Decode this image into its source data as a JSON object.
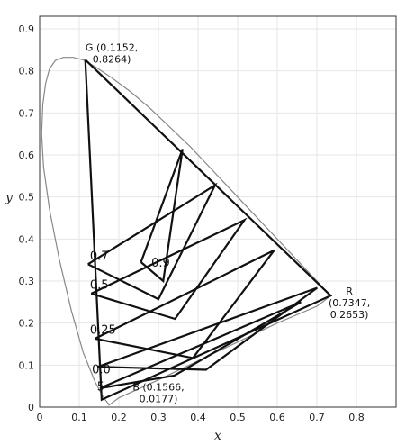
{
  "chart_data": {
    "type": "line",
    "title": "",
    "xlabel": "x",
    "ylabel": "y",
    "xlim": [
      0,
      0.9
    ],
    "ylim": [
      0,
      0.93
    ],
    "grid": true,
    "x_ticks": [
      "0",
      "0.1",
      "0.2",
      "0.3",
      "0.4",
      "0.5",
      "0.6",
      "0.7",
      "0.8"
    ],
    "y_ticks": [
      "0",
      "0.1",
      "0.2",
      "0.3",
      "0.4",
      "0.5",
      "0.6",
      "0.7",
      "0.8",
      "0.9"
    ],
    "vertices": [
      {
        "key": "G",
        "label_lines": [
          "G (0.1152,",
          "0.8264)"
        ],
        "x": 0.1152,
        "y": 0.8264
      },
      {
        "key": "R",
        "label_lines": [
          "R",
          "(0.7347,",
          "0.2653)"
        ],
        "x": 0.7347,
        "y": 0.2653
      },
      {
        "key": "B",
        "label_lines": [
          "B (0.1566,",
          "0.0177)"
        ],
        "x": 0.1566,
        "y": 0.0177
      }
    ],
    "spectral_locus": {
      "x": [
        0.175,
        0.174,
        0.17,
        0.16,
        0.14,
        0.11,
        0.08,
        0.05,
        0.025,
        0.01,
        0.005,
        0.008,
        0.015,
        0.025,
        0.04,
        0.06,
        0.085,
        0.11,
        0.14,
        0.18,
        0.23,
        0.28,
        0.33,
        0.38,
        0.43,
        0.48,
        0.53,
        0.58,
        0.63,
        0.68,
        0.735,
        0.7,
        0.6,
        0.5,
        0.4,
        0.3,
        0.2,
        0.175
      ],
      "y": [
        0.005,
        0.008,
        0.012,
        0.025,
        0.06,
        0.13,
        0.23,
        0.35,
        0.47,
        0.57,
        0.65,
        0.72,
        0.77,
        0.805,
        0.825,
        0.832,
        0.832,
        0.826,
        0.81,
        0.785,
        0.75,
        0.71,
        0.665,
        0.62,
        0.57,
        0.52,
        0.47,
        0.42,
        0.37,
        0.32,
        0.265,
        0.24,
        0.2,
        0.155,
        0.11,
        0.065,
        0.022,
        0.005
      ]
    },
    "series": [
      {
        "x": [
          0.1152,
          0.7347,
          0.1566,
          0.1152
        ],
        "y": [
          0.8264,
          0.2653,
          0.0177,
          0.8264
        ]
      },
      {
        "label": "0.9",
        "x": [
          0.256,
          0.312,
          0.361,
          0.256
        ],
        "y": [
          0.345,
          0.3,
          0.614,
          0.345
        ]
      },
      {
        "label": "0.7",
        "x": [
          0.122,
          0.3,
          0.443,
          0.122
        ],
        "y": [
          0.34,
          0.257,
          0.528,
          0.34
        ]
      },
      {
        "label": "0.5",
        "x": [
          0.13,
          0.342,
          0.517,
          0.13
        ],
        "y": [
          0.27,
          0.21,
          0.445,
          0.27
        ]
      },
      {
        "label": "0.25",
        "x": [
          0.14,
          0.387,
          0.592,
          0.14
        ],
        "y": [
          0.163,
          0.117,
          0.373,
          0.163
        ]
      },
      {
        "label": "0.0",
        "x": [
          0.147,
          0.42,
          0.701,
          0.147
        ],
        "y": [
          0.096,
          0.089,
          0.284,
          0.096
        ]
      },
      {
        "label": "5",
        "x": [
          0.152,
          0.34,
          0.66,
          0.152
        ],
        "y": [
          0.045,
          0.075,
          0.25,
          0.045
        ]
      }
    ],
    "level_labels": [
      {
        "text": "0.9",
        "x": 0.282,
        "y": 0.334
      },
      {
        "text": "0.7",
        "x": 0.127,
        "y": 0.35
      },
      {
        "text": "0.5",
        "x": 0.127,
        "y": 0.282
      },
      {
        "text": "0.25",
        "x": 0.127,
        "y": 0.175
      },
      {
        "text": "0.0",
        "x": 0.132,
        "y": 0.08
      },
      {
        "text": "5",
        "x": 0.145,
        "y": 0.04
      }
    ]
  }
}
